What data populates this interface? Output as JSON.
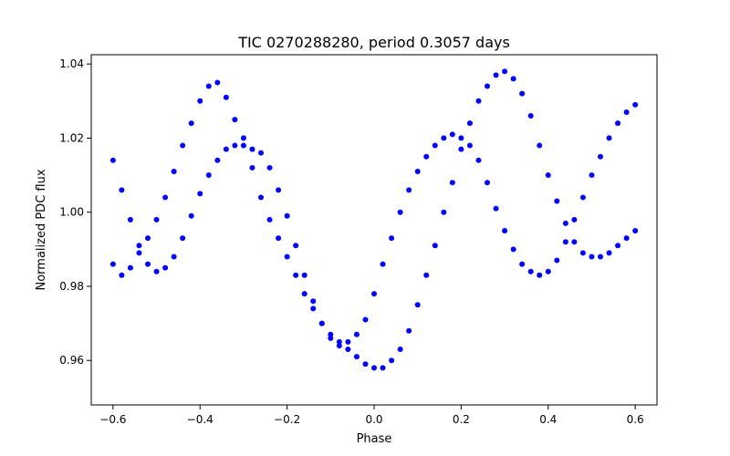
{
  "chart_data": {
    "type": "scatter",
    "title": "TIC 0270288280, period 0.3057 days",
    "xlabel": "Phase",
    "ylabel": "Normalized PDC flux",
    "xlim": [
      -0.65,
      0.65
    ],
    "ylim": [
      0.948,
      1.0425
    ],
    "xticks": [
      -0.6,
      -0.4,
      -0.2,
      0.0,
      0.2,
      0.4,
      0.6
    ],
    "xtick_labels": [
      "−0.6",
      "−0.4",
      "−0.2",
      "0.0",
      "0.2",
      "0.4",
      "0.6"
    ],
    "yticks": [
      0.96,
      0.98,
      1.0,
      1.02,
      1.04
    ],
    "ytick_labels": [
      "0.96",
      "0.98",
      "1.00",
      "1.02",
      "1.04"
    ],
    "grid": false,
    "marker_color": "#0000ff",
    "series": [
      {
        "x": [
          -0.6,
          -0.58,
          -0.56,
          -0.54,
          -0.52,
          -0.5,
          -0.48,
          -0.46,
          -0.44,
          -0.42,
          -0.4,
          -0.38,
          -0.36,
          -0.34,
          -0.32,
          -0.3,
          -0.28,
          -0.26,
          -0.24,
          -0.22,
          -0.2,
          -0.18,
          -0.16,
          -0.14,
          -0.12,
          -0.1,
          -0.08,
          -0.06,
          -0.04,
          -0.02,
          0.0,
          0.02,
          0.04,
          0.06,
          0.08,
          0.1,
          0.12,
          0.14,
          0.16,
          0.18,
          0.2,
          0.22,
          0.24,
          0.26,
          0.28,
          0.3,
          0.32,
          0.34,
          0.36,
          0.38,
          0.4,
          0.42,
          0.44,
          0.46,
          0.48,
          0.5,
          0.52,
          0.54,
          0.56,
          0.58,
          0.6
        ],
        "y": [
          1.014,
          1.006,
          0.998,
          0.991,
          0.986,
          0.984,
          0.985,
          0.988,
          0.993,
          0.999,
          1.005,
          1.01,
          1.014,
          1.017,
          1.018,
          1.018,
          1.017,
          1.016,
          1.012,
          1.006,
          0.999,
          0.991,
          0.983,
          0.976,
          0.97,
          0.966,
          0.964,
          0.963,
          0.961,
          0.959,
          0.958,
          0.958,
          0.96,
          0.963,
          0.968,
          0.975,
          0.983,
          0.991,
          1.0,
          1.008,
          1.017,
          1.024,
          1.03,
          1.034,
          1.037,
          1.038,
          1.036,
          1.032,
          1.026,
          1.018,
          1.01,
          1.003,
          0.997,
          0.992,
          0.989,
          0.988,
          0.988,
          0.989,
          0.991,
          0.993,
          0.995
        ]
      },
      {
        "x": [
          -0.6,
          -0.58,
          -0.56,
          -0.54,
          -0.52,
          -0.5,
          -0.48,
          -0.46,
          -0.44,
          -0.42,
          -0.4,
          -0.38,
          -0.36,
          -0.34,
          -0.32,
          -0.3,
          -0.28,
          -0.26,
          -0.24,
          -0.22,
          -0.2,
          -0.18,
          -0.16,
          -0.14,
          -0.12,
          -0.1,
          -0.08,
          -0.06,
          -0.04,
          -0.02,
          0.0,
          0.02,
          0.04,
          0.06,
          0.08,
          0.1,
          0.12,
          0.14,
          0.16,
          0.18,
          0.2,
          0.22,
          0.24,
          0.26,
          0.28,
          0.3,
          0.32,
          0.34,
          0.36,
          0.38,
          0.4,
          0.42,
          0.44,
          0.46,
          0.48,
          0.5,
          0.52,
          0.54,
          0.56,
          0.58,
          0.6
        ],
        "y": [
          0.986,
          0.983,
          0.985,
          0.989,
          0.993,
          0.998,
          1.004,
          1.011,
          1.018,
          1.024,
          1.03,
          1.034,
          1.035,
          1.031,
          1.025,
          1.02,
          1.012,
          1.004,
          0.998,
          0.993,
          0.988,
          0.983,
          0.978,
          0.974,
          0.97,
          0.967,
          0.965,
          0.965,
          0.967,
          0.971,
          0.978,
          0.986,
          0.993,
          1.0,
          1.006,
          1.011,
          1.015,
          1.018,
          1.02,
          1.021,
          1.02,
          1.018,
          1.014,
          1.008,
          1.001,
          0.995,
          0.99,
          0.986,
          0.984,
          0.983,
          0.984,
          0.987,
          0.992,
          0.998,
          1.004,
          1.01,
          1.015,
          1.02,
          1.024,
          1.027,
          1.029
        ]
      }
    ]
  }
}
